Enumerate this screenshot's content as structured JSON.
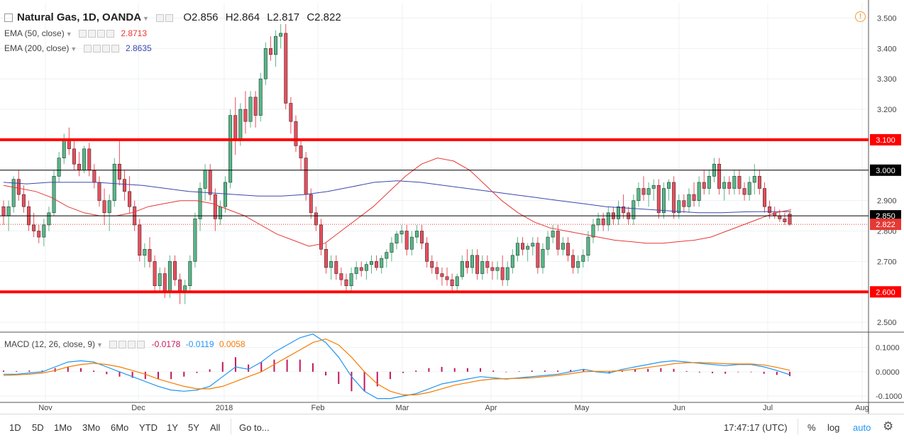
{
  "header": {
    "symbol": "Natural Gas, 1D, OANDA",
    "o_label": "O",
    "o_value": "2.856",
    "h_label": "H",
    "h_value": "2.864",
    "l_label": "L",
    "l_value": "2.817",
    "c_label": "C",
    "c_value": "2.822"
  },
  "indicators": {
    "ema50": {
      "label": "EMA (50, close)",
      "value": "2.8713",
      "color": "#e53935"
    },
    "ema200": {
      "label": "EMA (200, close)",
      "value": "2.8635",
      "color": "#3949ab"
    },
    "macd": {
      "label": "MACD (12, 26, close, 9)",
      "hist": "-0.0178",
      "macd": "-0.0119",
      "signal": "0.0058",
      "hist_color": "#c2185b",
      "macd_color": "#2196f3",
      "signal_color": "#f57c00"
    }
  },
  "toolbar": {
    "ranges": [
      "1D",
      "5D",
      "1Mo",
      "3Mo",
      "6Mo",
      "YTD",
      "1Y",
      "5Y",
      "All"
    ],
    "goto": "Go to...",
    "time": "17:47:17 (UTC)",
    "percent": "%",
    "log": "log",
    "auto": "auto"
  },
  "chart_data": {
    "type": "candlestick",
    "y_ticks": [
      2.5,
      2.6,
      2.7,
      2.8,
      2.9,
      3.0,
      3.1,
      3.2,
      3.3,
      3.4,
      3.5
    ],
    "y_tick_labels": [
      "2.500",
      "2.600",
      "2.700",
      "2.800",
      "2.900",
      "3.000",
      "3.100",
      "3.200",
      "3.300",
      "3.400",
      "3.500"
    ],
    "ylim": [
      2.47,
      3.55
    ],
    "x_labels": [
      "Nov",
      "Dec",
      "2018",
      "Feb",
      "Mar",
      "Apr",
      "May",
      "Jun",
      "Jul",
      "Aug"
    ],
    "horizontal_levels": [
      {
        "value": 3.1,
        "label": "3.100",
        "color": "#ff0000",
        "width": 4
      },
      {
        "value": 3.0,
        "label": "3.000",
        "color": "#000000",
        "width": 1
      },
      {
        "value": 2.85,
        "label": "2.850",
        "color": "#000000",
        "width": 1
      },
      {
        "value": 2.6,
        "label": "2.600",
        "color": "#ff0000",
        "width": 4
      }
    ],
    "last_price": {
      "value": 2.822,
      "label": "2.822",
      "color": "#e53935"
    },
    "up_color": "#53b987",
    "down_color": "#eb4d5c",
    "candles": [
      [
        2.88,
        2.9,
        2.82,
        2.85
      ],
      [
        2.85,
        2.9,
        2.8,
        2.88
      ],
      [
        2.88,
        2.98,
        2.86,
        2.97
      ],
      [
        2.97,
        3.0,
        2.9,
        2.92
      ],
      [
        2.92,
        2.95,
        2.86,
        2.88
      ],
      [
        2.88,
        2.9,
        2.8,
        2.82
      ],
      [
        2.82,
        2.86,
        2.78,
        2.8
      ],
      [
        2.8,
        2.82,
        2.76,
        2.78
      ],
      [
        2.78,
        2.84,
        2.75,
        2.82
      ],
      [
        2.82,
        2.88,
        2.8,
        2.86
      ],
      [
        2.86,
        3.0,
        2.85,
        2.98
      ],
      [
        2.98,
        3.06,
        2.96,
        3.04
      ],
      [
        3.04,
        3.12,
        3.02,
        3.1
      ],
      [
        3.1,
        3.14,
        3.05,
        3.07
      ],
      [
        3.07,
        3.1,
        3.0,
        3.02
      ],
      [
        3.02,
        3.06,
        2.98,
        3.0
      ],
      [
        3.0,
        3.08,
        2.99,
        3.07
      ],
      [
        3.07,
        3.09,
        2.98,
        3.0
      ],
      [
        3.0,
        3.02,
        2.94,
        2.96
      ],
      [
        2.96,
        2.98,
        2.88,
        2.9
      ],
      [
        2.9,
        2.94,
        2.82,
        2.86
      ],
      [
        2.86,
        2.92,
        2.8,
        2.9
      ],
      [
        2.9,
        3.04,
        2.88,
        3.02
      ],
      [
        3.02,
        3.1,
        2.95,
        2.97
      ],
      [
        2.97,
        3.0,
        2.9,
        2.93
      ],
      [
        2.93,
        2.98,
        2.86,
        2.88
      ],
      [
        2.88,
        2.9,
        2.8,
        2.82
      ],
      [
        2.82,
        2.84,
        2.7,
        2.72
      ],
      [
        2.72,
        2.76,
        2.68,
        2.74
      ],
      [
        2.74,
        2.78,
        2.68,
        2.7
      ],
      [
        2.7,
        2.72,
        2.6,
        2.62
      ],
      [
        2.62,
        2.68,
        2.6,
        2.66
      ],
      [
        2.66,
        2.68,
        2.58,
        2.6
      ],
      [
        2.6,
        2.72,
        2.58,
        2.7
      ],
      [
        2.7,
        2.72,
        2.62,
        2.64
      ],
      [
        2.64,
        2.66,
        2.56,
        2.6
      ],
      [
        2.6,
        2.64,
        2.56,
        2.62
      ],
      [
        2.62,
        2.72,
        2.6,
        2.7
      ],
      [
        2.7,
        2.86,
        2.68,
        2.84
      ],
      [
        2.84,
        2.96,
        2.8,
        2.94
      ],
      [
        2.94,
        3.02,
        2.9,
        3.0
      ],
      [
        3.0,
        3.02,
        2.9,
        2.92
      ],
      [
        2.92,
        2.94,
        2.8,
        2.84
      ],
      [
        2.84,
        2.9,
        2.82,
        2.88
      ],
      [
        2.88,
        2.98,
        2.86,
        2.96
      ],
      [
        2.96,
        3.2,
        2.94,
        3.18
      ],
      [
        3.18,
        3.24,
        3.05,
        3.1
      ],
      [
        3.1,
        3.22,
        3.08,
        3.2
      ],
      [
        3.2,
        3.26,
        3.12,
        3.16
      ],
      [
        3.16,
        3.26,
        3.14,
        3.24
      ],
      [
        3.24,
        3.26,
        3.14,
        3.18
      ],
      [
        3.18,
        3.32,
        3.16,
        3.3
      ],
      [
        3.3,
        3.42,
        3.28,
        3.4
      ],
      [
        3.4,
        3.44,
        3.36,
        3.38
      ],
      [
        3.38,
        3.46,
        3.34,
        3.44
      ],
      [
        3.44,
        3.48,
        3.4,
        3.45
      ],
      [
        3.45,
        3.48,
        3.2,
        3.22
      ],
      [
        3.22,
        3.24,
        3.12,
        3.16
      ],
      [
        3.16,
        3.18,
        3.06,
        3.08
      ],
      [
        3.08,
        3.1,
        3.0,
        3.04
      ],
      [
        3.04,
        3.06,
        2.9,
        2.92
      ],
      [
        2.92,
        2.94,
        2.84,
        2.86
      ],
      [
        2.86,
        2.88,
        2.8,
        2.82
      ],
      [
        2.82,
        2.84,
        2.72,
        2.74
      ],
      [
        2.74,
        2.76,
        2.66,
        2.68
      ],
      [
        2.68,
        2.72,
        2.64,
        2.7
      ],
      [
        2.7,
        2.72,
        2.64,
        2.66
      ],
      [
        2.66,
        2.68,
        2.62,
        2.64
      ],
      [
        2.64,
        2.66,
        2.6,
        2.62
      ],
      [
        2.62,
        2.68,
        2.6,
        2.66
      ],
      [
        2.66,
        2.7,
        2.64,
        2.68
      ],
      [
        2.68,
        2.7,
        2.65,
        2.67
      ],
      [
        2.67,
        2.7,
        2.64,
        2.69
      ],
      [
        2.69,
        2.72,
        2.66,
        2.7
      ],
      [
        2.7,
        2.72,
        2.67,
        2.68
      ],
      [
        2.68,
        2.72,
        2.66,
        2.71
      ],
      [
        2.71,
        2.74,
        2.68,
        2.73
      ],
      [
        2.73,
        2.78,
        2.7,
        2.76
      ],
      [
        2.76,
        2.8,
        2.74,
        2.79
      ],
      [
        2.79,
        2.82,
        2.76,
        2.8
      ],
      [
        2.8,
        2.82,
        2.72,
        2.74
      ],
      [
        2.74,
        2.8,
        2.72,
        2.78
      ],
      [
        2.78,
        2.82,
        2.76,
        2.8
      ],
      [
        2.8,
        2.82,
        2.74,
        2.76
      ],
      [
        2.76,
        2.78,
        2.68,
        2.7
      ],
      [
        2.7,
        2.72,
        2.66,
        2.68
      ],
      [
        2.68,
        2.7,
        2.64,
        2.66
      ],
      [
        2.66,
        2.68,
        2.62,
        2.65
      ],
      [
        2.65,
        2.68,
        2.62,
        2.64
      ],
      [
        2.64,
        2.66,
        2.6,
        2.62
      ],
      [
        2.62,
        2.66,
        2.6,
        2.65
      ],
      [
        2.65,
        2.72,
        2.64,
        2.7
      ],
      [
        2.7,
        2.74,
        2.66,
        2.68
      ],
      [
        2.68,
        2.74,
        2.66,
        2.72
      ],
      [
        2.72,
        2.74,
        2.64,
        2.66
      ],
      [
        2.66,
        2.72,
        2.64,
        2.7
      ],
      [
        2.7,
        2.72,
        2.66,
        2.68
      ],
      [
        2.68,
        2.7,
        2.64,
        2.67
      ],
      [
        2.67,
        2.7,
        2.64,
        2.68
      ],
      [
        2.68,
        2.72,
        2.62,
        2.64
      ],
      [
        2.64,
        2.7,
        2.62,
        2.68
      ],
      [
        2.68,
        2.74,
        2.66,
        2.72
      ],
      [
        2.72,
        2.78,
        2.7,
        2.76
      ],
      [
        2.76,
        2.78,
        2.72,
        2.74
      ],
      [
        2.74,
        2.76,
        2.7,
        2.75
      ],
      [
        2.75,
        2.78,
        2.72,
        2.76
      ],
      [
        2.76,
        2.78,
        2.66,
        2.68
      ],
      [
        2.68,
        2.76,
        2.66,
        2.74
      ],
      [
        2.74,
        2.8,
        2.72,
        2.78
      ],
      [
        2.78,
        2.82,
        2.76,
        2.8
      ],
      [
        2.8,
        2.82,
        2.72,
        2.74
      ],
      [
        2.74,
        2.78,
        2.72,
        2.76
      ],
      [
        2.76,
        2.78,
        2.7,
        2.72
      ],
      [
        2.72,
        2.74,
        2.66,
        2.68
      ],
      [
        2.68,
        2.72,
        2.66,
        2.7
      ],
      [
        2.7,
        2.74,
        2.68,
        2.72
      ],
      [
        2.72,
        2.8,
        2.7,
        2.78
      ],
      [
        2.78,
        2.84,
        2.76,
        2.82
      ],
      [
        2.82,
        2.86,
        2.8,
        2.84
      ],
      [
        2.84,
        2.86,
        2.8,
        2.82
      ],
      [
        2.82,
        2.88,
        2.8,
        2.86
      ],
      [
        2.86,
        2.88,
        2.82,
        2.84
      ],
      [
        2.84,
        2.9,
        2.82,
        2.88
      ],
      [
        2.88,
        2.92,
        2.84,
        2.86
      ],
      [
        2.86,
        2.88,
        2.82,
        2.84
      ],
      [
        2.84,
        2.92,
        2.82,
        2.9
      ],
      [
        2.9,
        2.96,
        2.88,
        2.94
      ],
      [
        2.94,
        2.98,
        2.9,
        2.92
      ],
      [
        2.92,
        2.96,
        2.88,
        2.94
      ],
      [
        2.94,
        2.97,
        2.9,
        2.95
      ],
      [
        2.95,
        2.97,
        2.84,
        2.86
      ],
      [
        2.86,
        2.96,
        2.84,
        2.94
      ],
      [
        2.94,
        2.97,
        2.9,
        2.96
      ],
      [
        2.96,
        2.98,
        2.84,
        2.86
      ],
      [
        2.86,
        2.92,
        2.84,
        2.9
      ],
      [
        2.9,
        2.92,
        2.86,
        2.88
      ],
      [
        2.88,
        2.94,
        2.86,
        2.92
      ],
      [
        2.92,
        2.96,
        2.88,
        2.9
      ],
      [
        2.9,
        2.98,
        2.88,
        2.96
      ],
      [
        2.96,
        3.0,
        2.92,
        2.94
      ],
      [
        2.94,
        3.0,
        2.92,
        2.98
      ],
      [
        2.98,
        3.04,
        2.96,
        3.02
      ],
      [
        3.02,
        3.04,
        2.92,
        2.94
      ],
      [
        2.94,
        2.98,
        2.9,
        2.96
      ],
      [
        2.96,
        2.98,
        2.92,
        2.94
      ],
      [
        2.94,
        3.0,
        2.92,
        2.98
      ],
      [
        2.98,
        3.0,
        2.92,
        2.94
      ],
      [
        2.94,
        2.96,
        2.9,
        2.92
      ],
      [
        2.92,
        2.98,
        2.9,
        2.96
      ],
      [
        2.96,
        3.02,
        2.92,
        2.98
      ],
      [
        2.98,
        3.0,
        2.92,
        2.94
      ],
      [
        2.94,
        2.96,
        2.86,
        2.88
      ],
      [
        2.88,
        2.9,
        2.84,
        2.86
      ],
      [
        2.86,
        2.88,
        2.84,
        2.85
      ],
      [
        2.85,
        2.87,
        2.83,
        2.84
      ],
      [
        2.84,
        2.86,
        2.82,
        2.83
      ],
      [
        2.856,
        2.864,
        2.817,
        2.822
      ]
    ],
    "ema50": [
      2.95,
      2.94,
      2.93,
      2.91,
      2.88,
      2.86,
      2.85,
      2.85,
      2.86,
      2.88,
      2.89,
      2.9,
      2.9,
      2.89,
      2.87,
      2.85,
      2.82,
      2.79,
      2.77,
      2.75,
      2.76,
      2.8,
      2.84,
      2.88,
      2.93,
      2.98,
      3.02,
      3.04,
      3.03,
      3.0,
      2.95,
      2.9,
      2.86,
      2.83,
      2.81,
      2.8,
      2.79,
      2.78,
      2.77,
      2.765,
      2.76,
      2.76,
      2.765,
      2.77,
      2.78,
      2.8,
      2.82,
      2.84,
      2.86,
      2.87
    ],
    "ema200": [
      2.96,
      2.955,
      2.96,
      2.96,
      2.96,
      2.955,
      2.95,
      2.94,
      2.93,
      2.925,
      2.92,
      2.915,
      2.915,
      2.92,
      2.93,
      2.945,
      2.96,
      2.965,
      2.96,
      2.95,
      2.94,
      2.93,
      2.92,
      2.91,
      2.9,
      2.89,
      2.88,
      2.875,
      2.87,
      2.865,
      2.86,
      2.86,
      2.863,
      2.864,
      2.8635
    ],
    "macd": {
      "ylim": [
        -0.12,
        0.16
      ],
      "y_ticks": [
        0.1,
        0.0,
        -0.1
      ],
      "y_tick_labels": [
        "0.1000",
        "0.0000",
        "-0.1000"
      ],
      "macd_line": [
        -0.01,
        -0.01,
        -0.005,
        0.0,
        0.02,
        0.04,
        0.045,
        0.04,
        0.02,
        0.0,
        -0.02,
        -0.04,
        -0.06,
        -0.075,
        -0.08,
        -0.075,
        -0.06,
        -0.02,
        0.02,
        0.01,
        0.04,
        0.08,
        0.11,
        0.14,
        0.155,
        0.12,
        0.06,
        -0.02,
        -0.08,
        -0.11,
        -0.11,
        -0.1,
        -0.09,
        -0.07,
        -0.05,
        -0.04,
        -0.03,
        -0.02,
        -0.025,
        -0.03,
        -0.025,
        -0.02,
        -0.015,
        -0.01,
        0.0,
        0.01,
        0.0,
        -0.005,
        0.01,
        0.02,
        0.03,
        0.04,
        0.045,
        0.04,
        0.035,
        0.03,
        0.025,
        0.03,
        0.03,
        0.02,
        0.005,
        -0.012
      ],
      "signal_line": [
        -0.015,
        -0.013,
        -0.01,
        -0.005,
        0.005,
        0.02,
        0.03,
        0.035,
        0.03,
        0.02,
        0.005,
        -0.01,
        -0.03,
        -0.045,
        -0.06,
        -0.07,
        -0.07,
        -0.06,
        -0.04,
        -0.02,
        0.0,
        0.03,
        0.06,
        0.09,
        0.12,
        0.135,
        0.11,
        0.06,
        0.0,
        -0.05,
        -0.08,
        -0.095,
        -0.095,
        -0.085,
        -0.07,
        -0.055,
        -0.045,
        -0.035,
        -0.03,
        -0.028,
        -0.027,
        -0.025,
        -0.02,
        -0.015,
        -0.008,
        0.0,
        0.002,
        0.002,
        0.005,
        0.01,
        0.018,
        0.025,
        0.033,
        0.037,
        0.038,
        0.036,
        0.033,
        0.032,
        0.032,
        0.028,
        0.018,
        0.006
      ]
    }
  }
}
